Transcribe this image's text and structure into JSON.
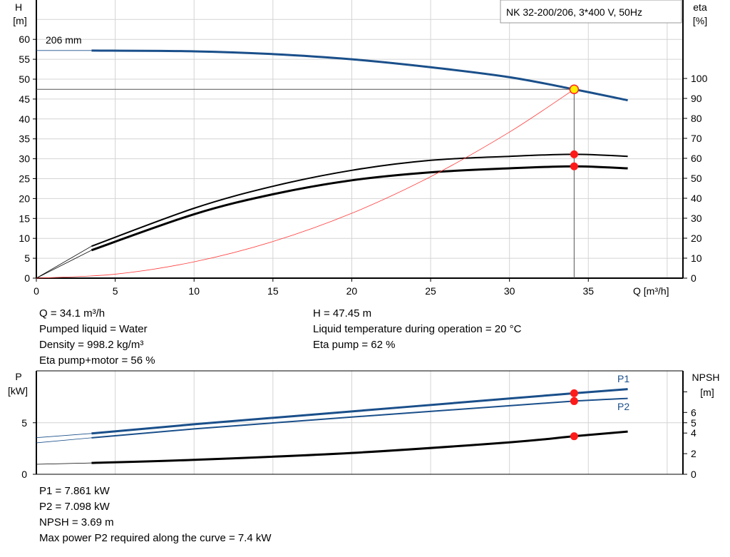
{
  "chart_data": [
    {
      "type": "line",
      "title": "NK 32-200/206, 3*400 V, 50Hz",
      "xlabel": "Q [m³/h]",
      "ylabel_left": [
        "H",
        "[m]"
      ],
      "ylabel_right": [
        "eta",
        "[%]"
      ],
      "xlim": [
        0,
        41
      ],
      "ylim_left": [
        0,
        70
      ],
      "ylim_right": [
        0,
        100
      ],
      "x_ticks": [
        0,
        5,
        10,
        15,
        20,
        25,
        30,
        35
      ],
      "y_ticks_left": [
        0,
        5,
        10,
        15,
        20,
        25,
        30,
        35,
        40,
        45,
        50,
        55,
        60
      ],
      "y_ticks_right": [
        0,
        10,
        20,
        30,
        40,
        50,
        60,
        70,
        80,
        90,
        100
      ],
      "grid": true,
      "curve_label": "206 mm",
      "series": [
        {
          "key": "H",
          "axis": "left",
          "color": "#1a4f8a",
          "x": [
            3.5,
            10,
            15,
            20,
            25,
            30,
            34.1,
            37.5
          ],
          "y": [
            57.2,
            57.0,
            56.3,
            55.0,
            53.0,
            50.5,
            47.45,
            44.7
          ],
          "extrapolate_from_zero": [
            0,
            57.2
          ]
        },
        {
          "key": "eta_pump",
          "axis": "right",
          "color": "#000000",
          "x": [
            3.5,
            10,
            15,
            20,
            25,
            30,
            34.1,
            37.5
          ],
          "y": [
            16,
            35,
            46,
            54,
            59,
            61,
            62,
            61
          ],
          "extrapolate_from_zero": [
            0,
            0
          ]
        },
        {
          "key": "eta_pump_motor",
          "axis": "right",
          "color": "#000000",
          "x": [
            3.5,
            10,
            15,
            20,
            25,
            30,
            34.1,
            37.5
          ],
          "y": [
            14,
            32,
            42,
            49,
            53,
            55,
            56,
            55
          ],
          "extrapolate_from_zero": [
            0,
            0
          ]
        },
        {
          "key": "system_curve",
          "axis": "left",
          "color": "#ff3b3b",
          "x": [
            0,
            5,
            10,
            15,
            20,
            25,
            30,
            34.1
          ],
          "y": [
            0,
            1.0,
            4.1,
            9.2,
            16.3,
            25.5,
            36.7,
            47.45
          ]
        }
      ],
      "duty_point": {
        "Q": 34.1,
        "H": 47.45,
        "eta_pump": 62,
        "eta_pump_motor": 56
      }
    },
    {
      "type": "line",
      "xlim": [
        0,
        41
      ],
      "ylabel_left": [
        "P",
        "[kW]"
      ],
      "ylabel_right": [
        "NPSH",
        "[m]"
      ],
      "ylim_left": [
        0,
        10
      ],
      "ylim_right": [
        0,
        10
      ],
      "y_ticks_left": [
        0,
        5
      ],
      "y_ticks_right": [
        0,
        2,
        4,
        5,
        6,
        8
      ],
      "y_tick_labels_right": [
        "0",
        "2",
        "4",
        "5",
        "6",
        ""
      ],
      "series": [
        {
          "name": "P1",
          "axis": "left",
          "color": "#1a4f8a",
          "x": [
            0,
            3.5,
            10,
            20,
            30,
            34.1,
            37.5
          ],
          "y": [
            3.55,
            3.96,
            4.85,
            6.1,
            7.35,
            7.861,
            8.26
          ]
        },
        {
          "name": "P2",
          "axis": "left",
          "color": "#1a4f8a",
          "x": [
            0,
            3.5,
            10,
            20,
            30,
            34.1,
            37.5
          ],
          "y": [
            3.05,
            3.54,
            4.4,
            5.55,
            6.65,
            7.098,
            7.36
          ]
        },
        {
          "key": "NPSH",
          "axis": "right",
          "color": "#000000",
          "x": [
            0,
            3.5,
            10,
            20,
            30,
            34.1,
            37.5
          ],
          "y": [
            0.97,
            1.1,
            1.4,
            2.07,
            3.1,
            3.69,
            4.14
          ]
        }
      ],
      "duty_point": {
        "Q": 34.1,
        "P1": 7.861,
        "P2": 7.098,
        "NPSH": 3.69
      }
    }
  ],
  "info_top_left": [
    "Q = 34.1 m³/h",
    "Pumped liquid = Water",
    "Density = 998.2 kg/m³",
    "Eta pump+motor = 56 %"
  ],
  "info_top_right": [
    "H = 47.45 m",
    "Liquid temperature during operation = 20 °C",
    "Eta pump = 62 %"
  ],
  "info_bottom": [
    "P1 = 7.861 kW",
    "P2 = 7.098 kW",
    "NPSH = 3.69 m",
    "Max power P2 required along the curve = 7.4 kW"
  ]
}
